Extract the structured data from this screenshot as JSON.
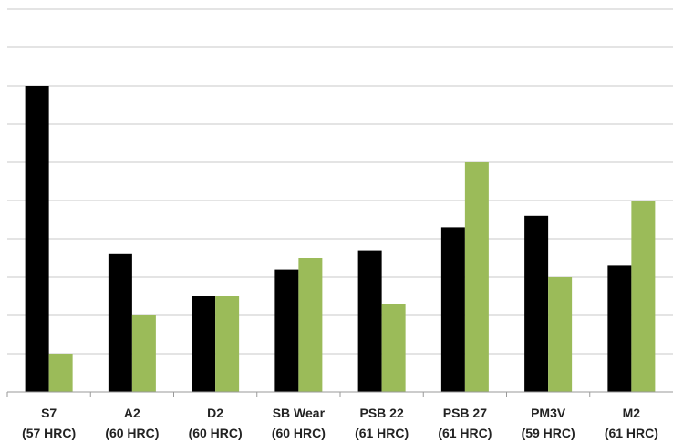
{
  "chart_data": {
    "type": "bar",
    "title": "",
    "xlabel": "",
    "ylabel": "",
    "categories": [
      {
        "line1": "S7",
        "line2": "(57 HRC)"
      },
      {
        "line1": "A2",
        "line2": "(60 HRC)"
      },
      {
        "line1": "D2",
        "line2": "(60 HRC)"
      },
      {
        "line1": "SB Wear",
        "line2": "(60 HRC)"
      },
      {
        "line1": "PSB 22",
        "line2": "(61 HRC)"
      },
      {
        "line1": "PSB 27",
        "line2": "(61 HRC)"
      },
      {
        "line1": "PM3V",
        "line2": "(59 HRC)"
      },
      {
        "line1": "M2",
        "line2": "(61 HRC)"
      }
    ],
    "series": [
      {
        "color": "#000000",
        "values": [
          8.0,
          3.6,
          2.5,
          3.2,
          3.7,
          4.3,
          4.6,
          3.3
        ]
      },
      {
        "color": "#9bbb59",
        "values": [
          1.0,
          2.0,
          2.5,
          3.5,
          2.3,
          6.0,
          3.0,
          5.0
        ]
      }
    ],
    "ylim": [
      0,
      10
    ],
    "grid": true,
    "legend": "none"
  }
}
